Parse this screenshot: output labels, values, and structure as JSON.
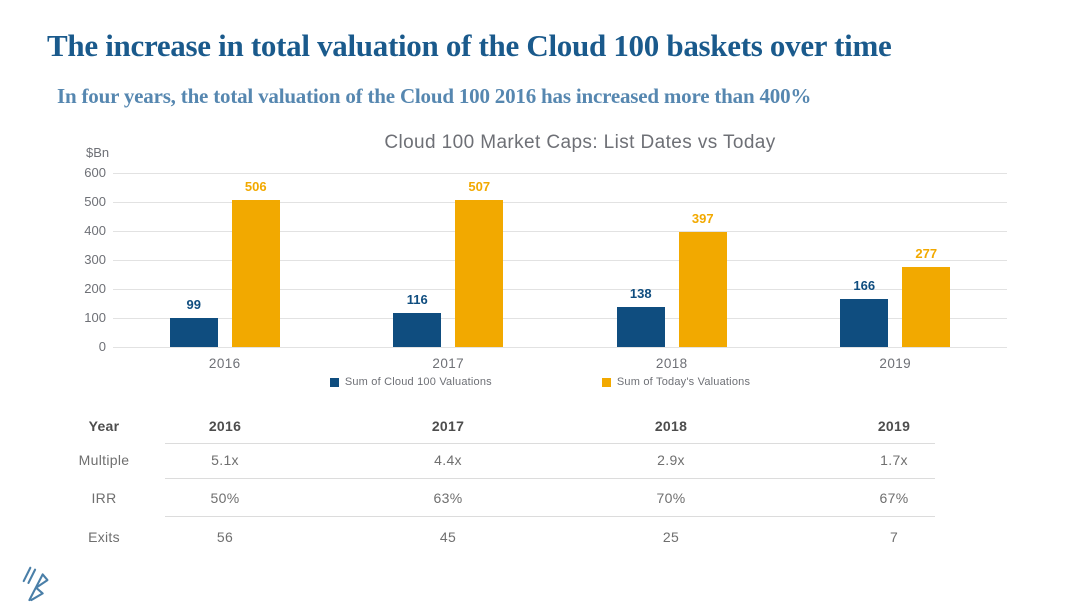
{
  "page": {
    "title": "The increase in total valuation of the Cloud 100 baskets over time",
    "subtitle": "In four years, the total valuation of the Cloud 100 2016 has increased more than 400%"
  },
  "chart_data": {
    "type": "bar",
    "title": "Cloud 100 Market Caps: List Dates vs Today",
    "unit_label": "$Bn",
    "categories": [
      "2016",
      "2017",
      "2018",
      "2019"
    ],
    "series": [
      {
        "name": "Sum of Cloud 100 Valuations",
        "color": "#0f4d7f",
        "values": [
          99,
          116,
          138,
          166
        ]
      },
      {
        "name": "Sum of Today's Valuations",
        "color": "#f2a900",
        "values": [
          506,
          507,
          397,
          277
        ]
      }
    ],
    "ylim": [
      0,
      600
    ],
    "ytick_interval": 100,
    "grid": true,
    "legend_position": "bottom"
  },
  "table": {
    "header_label": "Year",
    "header_values": [
      "2016",
      "2017",
      "2018",
      "2019"
    ],
    "rows": [
      {
        "label": "Multiple",
        "values": [
          "5.1x",
          "4.4x",
          "2.9x",
          "1.7x"
        ]
      },
      {
        "label": "IRR",
        "values": [
          "50%",
          "63%",
          "70%",
          "67%"
        ]
      },
      {
        "label": "Exits",
        "values": [
          "56",
          "45",
          "25",
          "7"
        ]
      }
    ]
  },
  "branding": {
    "logo": "bessemer-venture-partners-logo"
  },
  "colors": {
    "title_blue": "#1a5a8c",
    "subtitle_blue": "#5687b0",
    "series_blue": "#0f4d7f",
    "series_orange": "#f2a900",
    "chart_text_gray": "#6e7076",
    "table_header_gray": "#4d4d4d",
    "gridline_gray": "#e2e2e2",
    "logo_blue": "#4a7fa8"
  }
}
